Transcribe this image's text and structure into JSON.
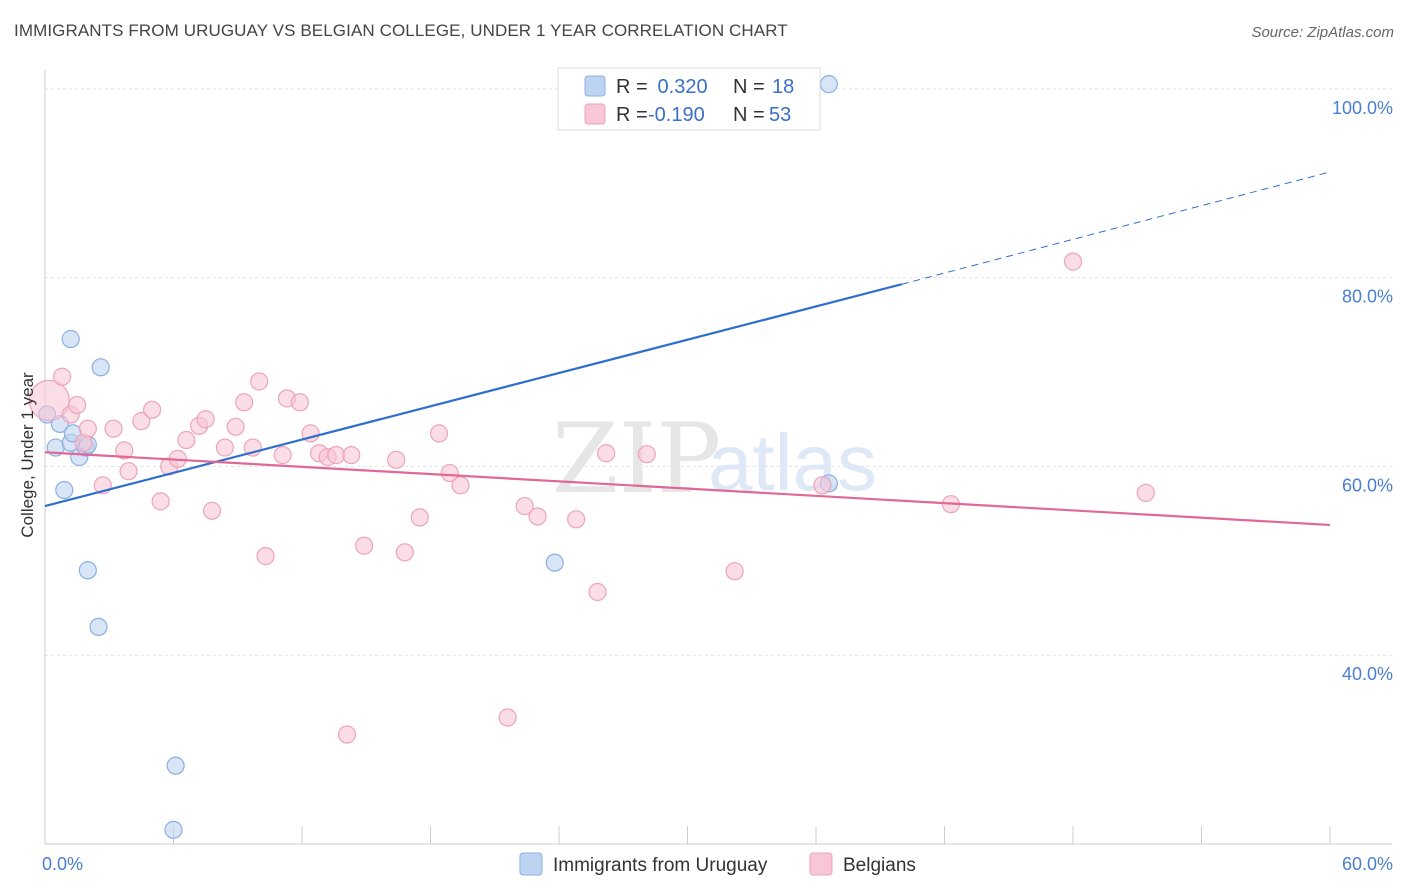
{
  "title": "IMMIGRANTS FROM URUGUAY VS BELGIAN COLLEGE, UNDER 1 YEAR CORRELATION CHART",
  "source": "Source: ZipAtlas.com",
  "watermark": {
    "zip": "ZIP",
    "atlas": "atlas"
  },
  "colors": {
    "blue_fill": "#bcd3f2",
    "blue_stroke": "#8cb0e3",
    "blue_line": "#2f6fce",
    "pink_fill": "#f8c6d6",
    "pink_stroke": "#eda3bb",
    "pink_line": "#e06896"
  },
  "legend": {
    "rows": [
      {
        "r_label": "R =",
        "r_value": " 0.320",
        "n_label": "N =",
        "n_value": "18"
      },
      {
        "r_label": "R =",
        "r_value": "-0.190",
        "n_label": "N =",
        "n_value": "53"
      }
    ]
  },
  "chart_data": {
    "type": "scatter",
    "ylabel": "College, Under 1 year",
    "xlim": [
      0,
      60
    ],
    "ylim": [
      20,
      102
    ],
    "x_tick_labels": [
      {
        "value": 0,
        "label": "0.0%"
      },
      {
        "value": 60,
        "label": "60.0%"
      }
    ],
    "y_ticks": [
      {
        "value": 100,
        "label": "100.0%"
      },
      {
        "value": 80,
        "label": "80.0%"
      },
      {
        "value": 60,
        "label": "60.0%"
      },
      {
        "value": 40,
        "label": "40.0%"
      }
    ],
    "grid": true,
    "series": [
      {
        "name": "Immigrants from Uruguay",
        "color": "blue",
        "points": [
          [
            0.1,
            65.5
          ],
          [
            0.5,
            62.0
          ],
          [
            0.7,
            64.5
          ],
          [
            0.9,
            57.5
          ],
          [
            1.2,
            73.5
          ],
          [
            1.2,
            62.5
          ],
          [
            1.3,
            63.5
          ],
          [
            1.6,
            61.0
          ],
          [
            1.9,
            62.0
          ],
          [
            2.0,
            62.3
          ],
          [
            2.0,
            49.0
          ],
          [
            2.5,
            43.0
          ],
          [
            2.6,
            70.5
          ],
          [
            6.1,
            28.3
          ],
          [
            6.0,
            21.5
          ],
          [
            23.8,
            49.8
          ],
          [
            36.6,
            100.5
          ],
          [
            36.6,
            58.2
          ]
        ],
        "trend": {
          "x0": 0,
          "y0": 55.8,
          "x1": 40.0,
          "y1": 79.3,
          "dash_x1": 60,
          "dash_y1": 91.2
        }
      },
      {
        "name": "Belgians",
        "color": "pink",
        "points": [
          [
            0.2,
            67.0
          ],
          [
            0.8,
            69.5
          ],
          [
            1.2,
            65.5
          ],
          [
            1.5,
            66.5
          ],
          [
            1.8,
            62.5
          ],
          [
            2.0,
            64.0
          ],
          [
            2.7,
            58.0
          ],
          [
            3.2,
            64.0
          ],
          [
            3.7,
            61.7
          ],
          [
            3.9,
            59.5
          ],
          [
            4.5,
            64.8
          ],
          [
            5.0,
            66.0
          ],
          [
            5.4,
            56.3
          ],
          [
            5.8,
            60.0
          ],
          [
            6.2,
            60.8
          ],
          [
            6.6,
            62.8
          ],
          [
            7.2,
            64.3
          ],
          [
            7.5,
            65.0
          ],
          [
            7.8,
            55.3
          ],
          [
            8.4,
            62.0
          ],
          [
            8.9,
            64.2
          ],
          [
            9.3,
            66.8
          ],
          [
            9.7,
            62.0
          ],
          [
            10.0,
            69.0
          ],
          [
            10.3,
            50.5
          ],
          [
            11.1,
            61.2
          ],
          [
            11.3,
            67.2
          ],
          [
            11.9,
            66.8
          ],
          [
            12.4,
            63.5
          ],
          [
            12.8,
            61.4
          ],
          [
            13.2,
            61.0
          ],
          [
            13.6,
            61.2
          ],
          [
            14.3,
            61.2
          ],
          [
            14.9,
            51.6
          ],
          [
            14.1,
            31.6
          ],
          [
            16.4,
            60.7
          ],
          [
            16.8,
            50.9
          ],
          [
            17.5,
            54.6
          ],
          [
            18.4,
            63.5
          ],
          [
            18.9,
            59.3
          ],
          [
            19.4,
            58.0
          ],
          [
            21.6,
            33.4
          ],
          [
            22.4,
            55.8
          ],
          [
            23.0,
            54.7
          ],
          [
            24.8,
            54.4
          ],
          [
            25.8,
            46.7
          ],
          [
            26.2,
            61.4
          ],
          [
            28.1,
            61.3
          ],
          [
            32.2,
            48.9
          ],
          [
            36.3,
            58.0
          ],
          [
            42.3,
            56.0
          ],
          [
            48.0,
            81.7
          ],
          [
            51.4,
            57.2
          ]
        ],
        "trend": {
          "x0": 0,
          "y0": 61.5,
          "x1": 60,
          "y1": 53.8
        }
      }
    ]
  }
}
